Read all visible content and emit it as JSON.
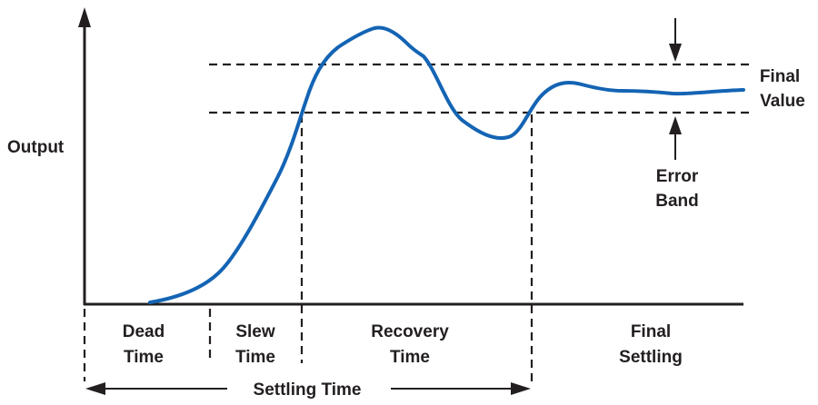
{
  "labels": {
    "y_axis": "Output",
    "final_value_line1": "Final",
    "final_value_line2": "Value",
    "error_band_line1": "Error",
    "error_band_line2": "Band",
    "dead_time_line1": "Dead",
    "dead_time_line2": "Time",
    "slew_time_line1": "Slew",
    "slew_time_line2": "Time",
    "recovery_time_line1": "Recovery",
    "recovery_time_line2": "Time",
    "final_settling_line1": "Final",
    "final_settling_line2": "Settling",
    "settling_time": "Settling Time"
  },
  "colors": {
    "curve": "#1464b4",
    "ink": "#231f20",
    "background": "#ffffff"
  }
}
